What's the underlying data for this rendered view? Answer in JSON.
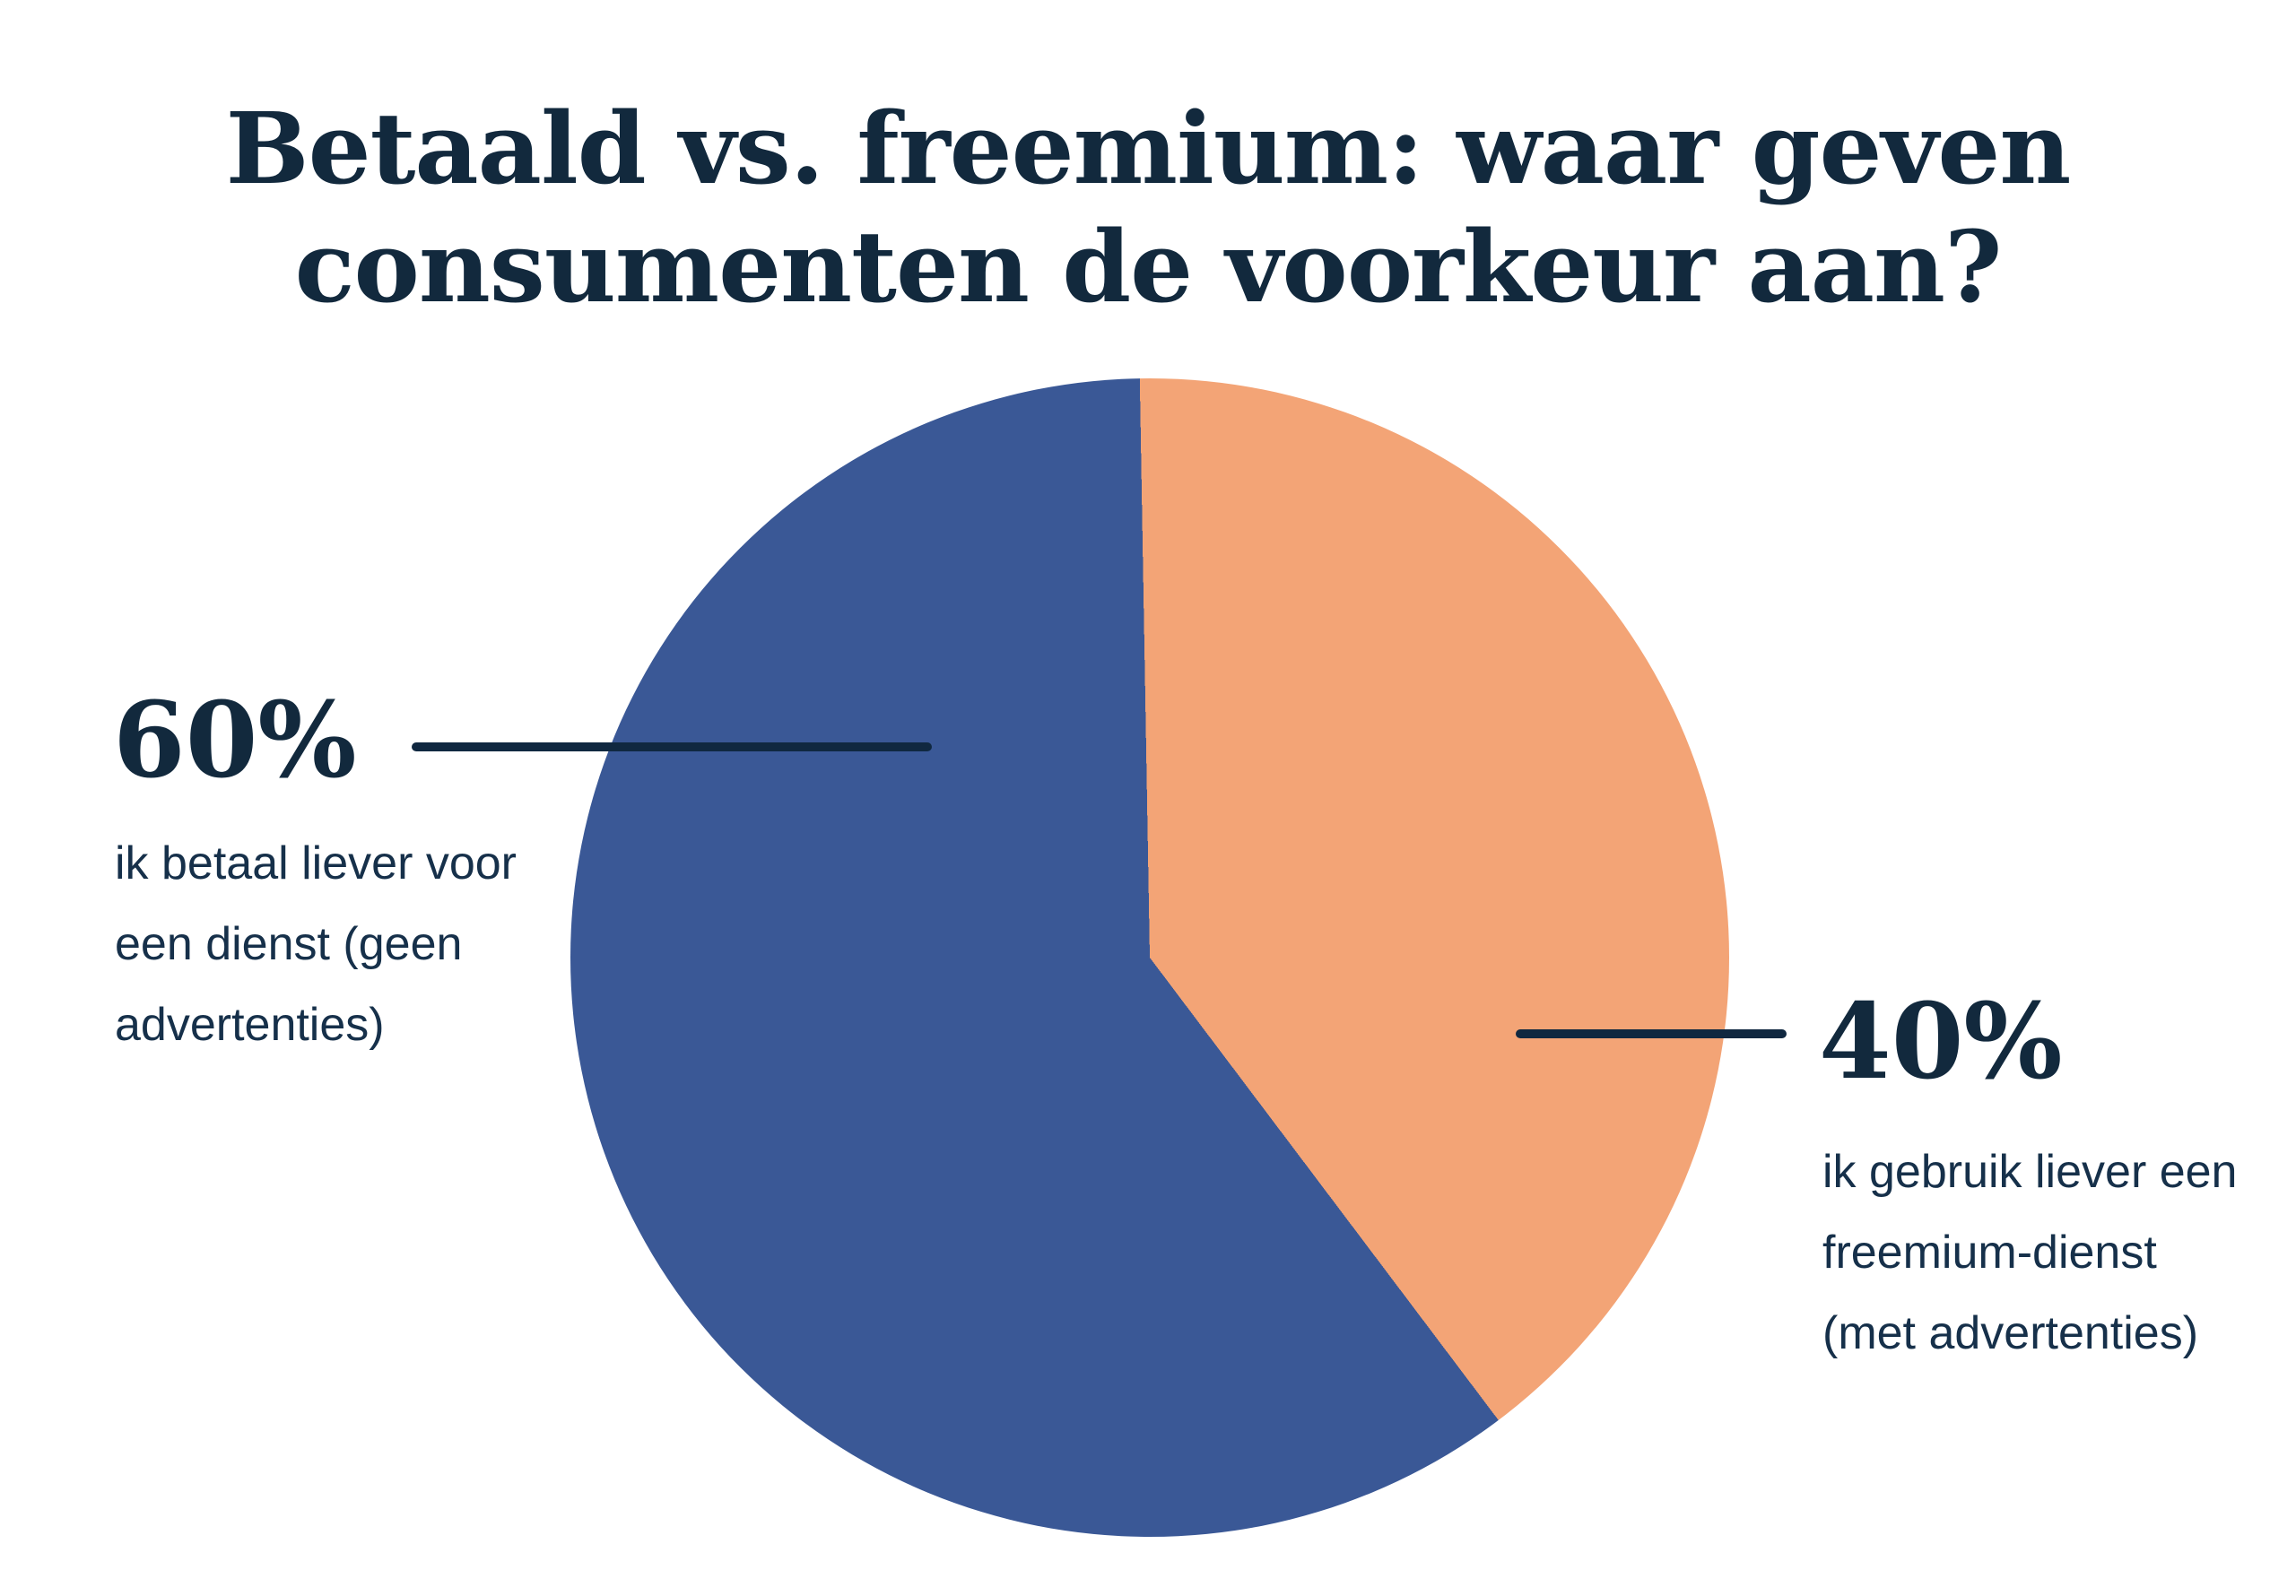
{
  "title": {
    "lines": [
      "Betaald vs. freemium: waar geven",
      "consumenten de voorkeur aan?"
    ],
    "text": "Betaald vs. freemium: waar geven consumenten de voorkeur aan?"
  },
  "chart_data": {
    "type": "pie",
    "title": "Betaald vs. freemium: waar geven consumenten de voorkeur aan?",
    "categories": [
      "ik betaal liever voor een dienst (geen advertenties)",
      "ik gebruik liever een freemium-dienst (met advertenties)"
    ],
    "values": [
      60,
      40
    ],
    "unit": "%",
    "colors": [
      "#3A5896",
      "#F3A476"
    ],
    "rotation_deg": 143,
    "direction": "clockwise",
    "legend_position": "callout-labels",
    "callouts": [
      {
        "pct_label": "60%",
        "side": "left",
        "text_lines": [
          "ik betaal liever voor",
          "een dienst (geen",
          "advertenties)"
        ]
      },
      {
        "pct_label": "40%",
        "side": "right",
        "text_lines": [
          "ik gebruik liever een",
          "freemium-dienst",
          "(met advertenties)"
        ]
      }
    ]
  },
  "colors": {
    "background": "#FFFFFF",
    "text_navy": "#12293D",
    "text_body": "#16304A",
    "leader_line": "#102840",
    "slice_paid_blue": "#3A5896",
    "slice_freemium_orange": "#F3A476"
  }
}
